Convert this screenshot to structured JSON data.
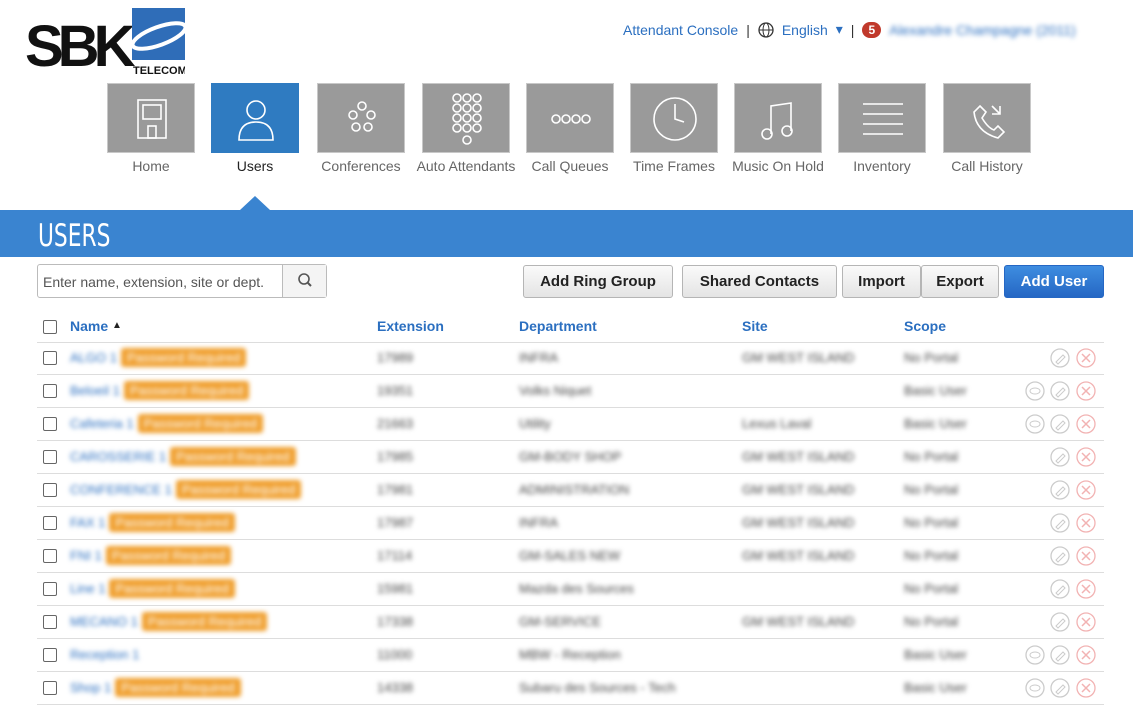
{
  "header": {
    "logo": "SBK",
    "logo_sub": "TELECOM",
    "console_link": "Attendant Console",
    "language": "English",
    "notifications": "5",
    "user": "Alexandre Champagne (2011)"
  },
  "nav": {
    "active": 1,
    "items": [
      {
        "label": "Home"
      },
      {
        "label": "Users"
      },
      {
        "label": "Conferences"
      },
      {
        "label": "Auto Attendants"
      },
      {
        "label": "Call Queues"
      },
      {
        "label": "Time Frames"
      },
      {
        "label": "Music On Hold"
      },
      {
        "label": "Inventory"
      },
      {
        "label": "Call History"
      }
    ]
  },
  "section": {
    "title": "USERS"
  },
  "toolbar": {
    "search_placeholder": "Enter name, extension, site or dept.",
    "buttons": [
      "Add Ring Group",
      "Shared Contacts",
      "Import",
      "Export",
      "Add User"
    ]
  },
  "table": {
    "columns": [
      "Name",
      "Extension",
      "Department",
      "Site",
      "Scope"
    ],
    "rows": [
      {
        "name": "ALGO 1",
        "badge": "Password Required",
        "extension": "17989",
        "department": "INFRA",
        "site": "GM WEST ISLAND",
        "scope": "No Portal"
      },
      {
        "name": "Beloeil 1",
        "badge": "Password Required",
        "extension": "19351",
        "department": "Volks Niquet",
        "site": null,
        "scope": "Basic User"
      },
      {
        "name": "Cafeteria 1",
        "badge": "Password Required",
        "extension": "21663",
        "department": "Utility",
        "site": "Lexus Laval",
        "scope": "Basic User"
      },
      {
        "name": "CAROSSERIE 1",
        "badge": "Password Required",
        "extension": "17985",
        "department": "GM-BODY SHOP",
        "site": "GM WEST ISLAND",
        "scope": "No Portal"
      },
      {
        "name": "CONFERENCE 1",
        "badge": "Password Required",
        "extension": "17981",
        "department": "ADMINISTRATION",
        "site": "GM WEST ISLAND",
        "scope": "No Portal"
      },
      {
        "name": "FAX 1",
        "badge": "Password Required",
        "extension": "17987",
        "department": "INFRA",
        "site": "GM WEST ISLAND",
        "scope": "No Portal"
      },
      {
        "name": "FNI 1",
        "badge": "Password Required",
        "extension": "17114",
        "department": "GM-SALES NEW",
        "site": "GM WEST ISLAND",
        "scope": "No Portal"
      },
      {
        "name": "Line 1",
        "badge": "Password Required",
        "extension": "15981",
        "department": "Mazda des Sources",
        "site": null,
        "scope": "No Portal"
      },
      {
        "name": "MECANO 1",
        "badge": "Password Required",
        "extension": "17338",
        "department": "GM-SERVICE",
        "site": "GM WEST ISLAND",
        "scope": "No Portal"
      },
      {
        "name": "Reception 1",
        "badge": null,
        "extension": "11000",
        "department": "MBW - Reception",
        "site": null,
        "scope": "Basic User"
      },
      {
        "name": "Shop 1",
        "badge": "Password Required",
        "extension": "14338",
        "department": "Subaru des Sources - Tech",
        "site": null,
        "scope": "Basic User"
      }
    ]
  }
}
